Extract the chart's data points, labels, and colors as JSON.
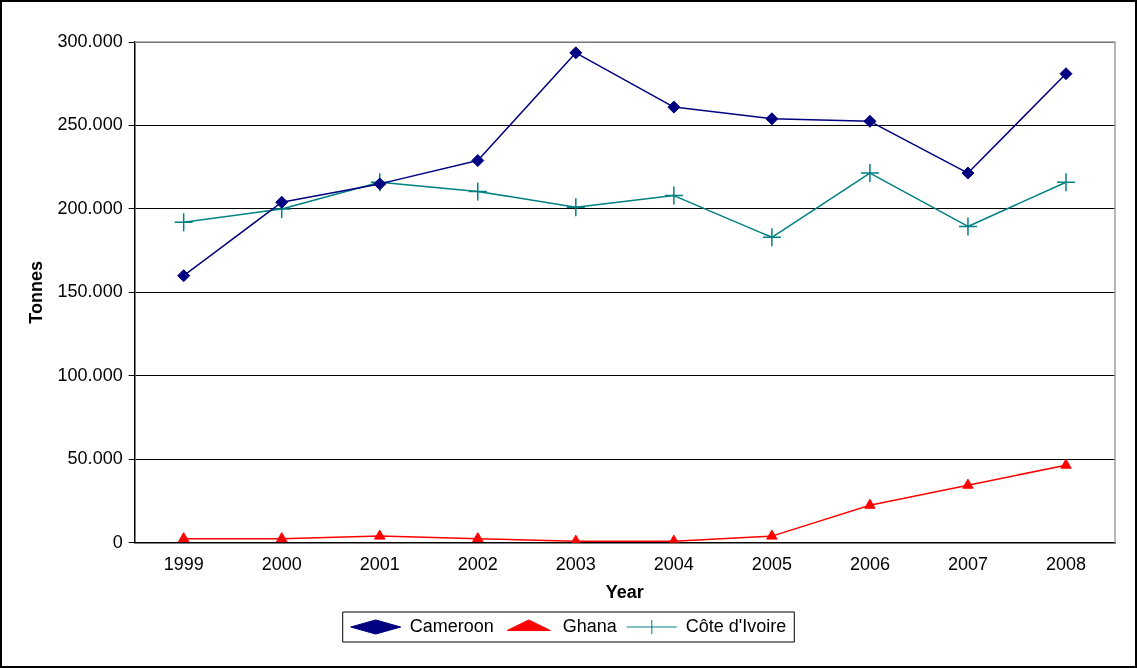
{
  "chart_data": {
    "type": "line",
    "xlabel": "Year",
    "ylabel": "Tonnes",
    "categories": [
      "1999",
      "2000",
      "2001",
      "2002",
      "2003",
      "2004",
      "2005",
      "2006",
      "2007",
      "2008"
    ],
    "series": [
      {
        "name": "Cameroon",
        "color": "#000080",
        "marker": "diamond",
        "values": [
          160000,
          204000,
          215000,
          229000,
          293500,
          261000,
          254000,
          252500,
          221500,
          281000
        ]
      },
      {
        "name": "Ghana",
        "color": "#ff0000",
        "marker": "triangle",
        "values": [
          2500,
          2500,
          4000,
          2500,
          1000,
          1000,
          4000,
          22500,
          34500,
          46500
        ]
      },
      {
        "name": "Côte d'Ivoire",
        "color": "#008080",
        "marker": "cross",
        "values": [
          192000,
          200000,
          216000,
          210500,
          201000,
          208000,
          183000,
          221500,
          189500,
          216000
        ]
      }
    ],
    "ylim": [
      0,
      300000
    ],
    "yticks": [
      0,
      {
        "value": 50000,
        "label": "50.000"
      },
      {
        "value": 100000,
        "label": "100.000"
      },
      {
        "value": 150000,
        "label": "150.000"
      },
      {
        "value": 200000,
        "label": "200.000"
      },
      {
        "value": 250000,
        "label": "250.000"
      },
      {
        "value": 300000,
        "label": "300.000"
      }
    ],
    "grid": "y",
    "legend": "bottom",
    "line_style": "solid"
  }
}
